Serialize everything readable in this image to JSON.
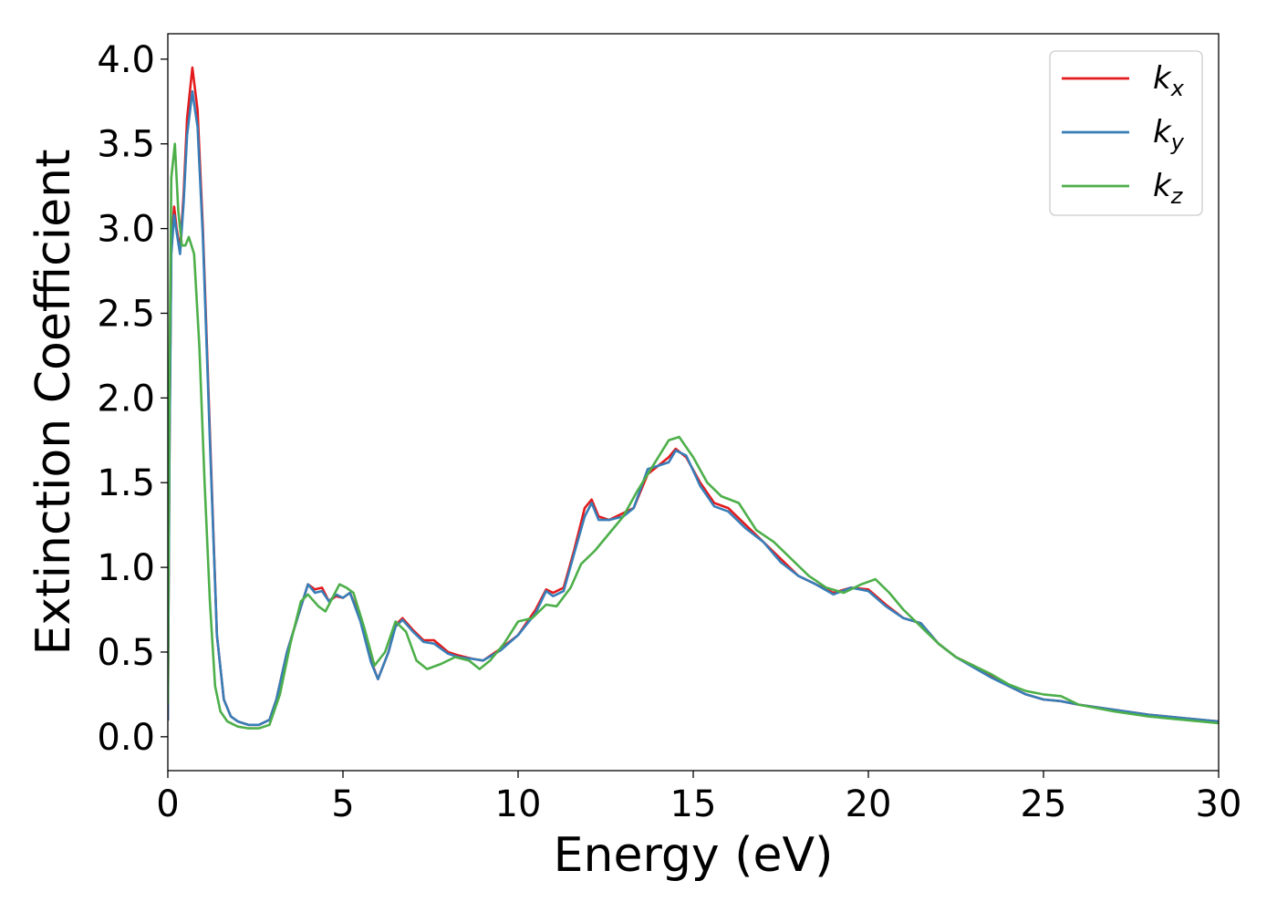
{
  "chart_data": {
    "type": "line",
    "title": "",
    "xlabel": "Energy (eV)",
    "ylabel": "Extinction Coefficient",
    "xlim": [
      0,
      30
    ],
    "ylim": [
      -0.2,
      4.15
    ],
    "xticks": [
      0,
      5,
      10,
      15,
      20,
      25,
      30
    ],
    "yticks": [
      0.0,
      0.5,
      1.0,
      1.5,
      2.0,
      2.5,
      3.0,
      3.5,
      4.0
    ],
    "xtick_labels": [
      "0",
      "5",
      "10",
      "15",
      "20",
      "25",
      "30"
    ],
    "ytick_labels": [
      "0.0",
      "0.5",
      "1.0",
      "1.5",
      "2.0",
      "2.5",
      "3.0",
      "3.5",
      "4.0"
    ],
    "grid": false,
    "legend_position": "top-right",
    "series": [
      {
        "name": "k_x",
        "label_base": "k",
        "label_sub": "x",
        "color": "#e41a1c",
        "x": [
          0,
          0.05,
          0.1,
          0.18,
          0.25,
          0.35,
          0.45,
          0.55,
          0.7,
          0.85,
          1.0,
          1.2,
          1.4,
          1.6,
          1.8,
          2.0,
          2.3,
          2.6,
          2.9,
          3.1,
          3.4,
          3.7,
          4.0,
          4.2,
          4.4,
          4.6,
          4.8,
          5.0,
          5.2,
          5.5,
          5.8,
          6.0,
          6.3,
          6.5,
          6.7,
          7.0,
          7.3,
          7.6,
          8.0,
          8.3,
          8.7,
          9.0,
          9.5,
          10.0,
          10.5,
          10.8,
          11.0,
          11.3,
          11.6,
          11.9,
          12.1,
          12.3,
          12.6,
          13.0,
          13.3,
          13.7,
          14.0,
          14.3,
          14.5,
          14.8,
          15.2,
          15.6,
          16.0,
          16.5,
          17.0,
          17.5,
          18.0,
          18.5,
          19.0,
          19.5,
          20.0,
          20.5,
          21.0,
          21.5,
          22.0,
          22.5,
          23.0,
          23.5,
          24.0,
          24.5,
          25.0,
          25.5,
          26.0,
          27.0,
          28.0,
          29.0,
          30.0
        ],
        "y": [
          0.1,
          1.8,
          2.9,
          3.13,
          3.0,
          2.88,
          3.2,
          3.65,
          3.95,
          3.7,
          3.0,
          1.8,
          0.6,
          0.22,
          0.12,
          0.09,
          0.07,
          0.07,
          0.1,
          0.22,
          0.5,
          0.7,
          0.9,
          0.87,
          0.88,
          0.8,
          0.83,
          0.82,
          0.85,
          0.7,
          0.45,
          0.34,
          0.5,
          0.66,
          0.7,
          0.63,
          0.57,
          0.57,
          0.5,
          0.48,
          0.46,
          0.45,
          0.52,
          0.6,
          0.75,
          0.87,
          0.85,
          0.88,
          1.1,
          1.35,
          1.4,
          1.3,
          1.28,
          1.32,
          1.35,
          1.55,
          1.6,
          1.65,
          1.7,
          1.65,
          1.5,
          1.38,
          1.35,
          1.25,
          1.15,
          1.05,
          0.95,
          0.9,
          0.85,
          0.88,
          0.87,
          0.78,
          0.7,
          0.67,
          0.55,
          0.47,
          0.42,
          0.36,
          0.3,
          0.25,
          0.22,
          0.21,
          0.19,
          0.16,
          0.13,
          0.11,
          0.09
        ]
      },
      {
        "name": "k_y",
        "label_base": "k",
        "label_sub": "y",
        "color": "#377eb8",
        "x": [
          0,
          0.05,
          0.1,
          0.18,
          0.25,
          0.35,
          0.45,
          0.55,
          0.7,
          0.85,
          1.0,
          1.2,
          1.4,
          1.6,
          1.8,
          2.0,
          2.3,
          2.6,
          2.9,
          3.1,
          3.4,
          3.7,
          4.0,
          4.2,
          4.4,
          4.6,
          4.8,
          5.0,
          5.2,
          5.5,
          5.8,
          6.0,
          6.3,
          6.5,
          6.7,
          7.0,
          7.3,
          7.6,
          8.0,
          8.3,
          8.7,
          9.0,
          9.5,
          10.0,
          10.5,
          10.8,
          11.0,
          11.3,
          11.6,
          11.9,
          12.1,
          12.3,
          12.6,
          13.0,
          13.3,
          13.7,
          14.0,
          14.3,
          14.5,
          14.8,
          15.2,
          15.6,
          16.0,
          16.5,
          17.0,
          17.5,
          18.0,
          18.5,
          19.0,
          19.5,
          20.0,
          20.5,
          21.0,
          21.5,
          22.0,
          22.5,
          23.0,
          23.5,
          24.0,
          24.5,
          25.0,
          25.5,
          26.0,
          27.0,
          28.0,
          29.0,
          30.0
        ],
        "y": [
          0.1,
          1.75,
          2.85,
          3.08,
          2.98,
          2.85,
          3.15,
          3.55,
          3.81,
          3.6,
          2.95,
          1.75,
          0.6,
          0.22,
          0.12,
          0.09,
          0.07,
          0.07,
          0.1,
          0.22,
          0.5,
          0.7,
          0.9,
          0.85,
          0.86,
          0.8,
          0.84,
          0.82,
          0.85,
          0.68,
          0.44,
          0.34,
          0.5,
          0.65,
          0.69,
          0.62,
          0.56,
          0.55,
          0.49,
          0.47,
          0.46,
          0.45,
          0.51,
          0.6,
          0.73,
          0.86,
          0.83,
          0.86,
          1.08,
          1.3,
          1.38,
          1.28,
          1.28,
          1.3,
          1.35,
          1.58,
          1.6,
          1.62,
          1.69,
          1.66,
          1.48,
          1.36,
          1.33,
          1.23,
          1.15,
          1.03,
          0.95,
          0.9,
          0.84,
          0.88,
          0.86,
          0.77,
          0.7,
          0.67,
          0.55,
          0.47,
          0.41,
          0.35,
          0.3,
          0.25,
          0.22,
          0.21,
          0.19,
          0.16,
          0.13,
          0.11,
          0.09
        ]
      },
      {
        "name": "k_z",
        "label_base": "k",
        "label_sub": "z",
        "color": "#4daf4a",
        "x": [
          0,
          0.05,
          0.1,
          0.2,
          0.3,
          0.4,
          0.5,
          0.6,
          0.75,
          0.9,
          1.05,
          1.2,
          1.35,
          1.5,
          1.7,
          2.0,
          2.3,
          2.6,
          2.9,
          3.2,
          3.5,
          3.8,
          4.0,
          4.3,
          4.5,
          4.7,
          4.9,
          5.1,
          5.3,
          5.6,
          5.9,
          6.2,
          6.5,
          6.8,
          7.1,
          7.4,
          7.8,
          8.2,
          8.6,
          8.9,
          9.2,
          9.6,
          10.0,
          10.4,
          10.8,
          11.1,
          11.5,
          11.8,
          12.2,
          12.6,
          13.0,
          13.4,
          13.7,
          14.0,
          14.3,
          14.6,
          15.0,
          15.4,
          15.8,
          16.3,
          16.8,
          17.3,
          17.8,
          18.3,
          18.8,
          19.3,
          19.8,
          20.2,
          20.6,
          21.0,
          21.5,
          22.0,
          22.5,
          23.0,
          23.5,
          24.0,
          24.5,
          25.0,
          25.5,
          26.0,
          27.0,
          28.0,
          29.0,
          30.0
        ],
        "y": [
          0.2,
          2.2,
          3.3,
          3.5,
          3.1,
          2.9,
          2.9,
          2.95,
          2.85,
          2.3,
          1.5,
          0.8,
          0.3,
          0.15,
          0.09,
          0.06,
          0.05,
          0.05,
          0.07,
          0.25,
          0.55,
          0.8,
          0.84,
          0.77,
          0.74,
          0.82,
          0.9,
          0.88,
          0.85,
          0.65,
          0.42,
          0.5,
          0.68,
          0.62,
          0.45,
          0.4,
          0.43,
          0.47,
          0.45,
          0.4,
          0.45,
          0.55,
          0.68,
          0.7,
          0.78,
          0.77,
          0.88,
          1.02,
          1.1,
          1.2,
          1.3,
          1.45,
          1.55,
          1.65,
          1.75,
          1.77,
          1.65,
          1.5,
          1.42,
          1.38,
          1.22,
          1.15,
          1.05,
          0.95,
          0.88,
          0.85,
          0.9,
          0.93,
          0.85,
          0.75,
          0.65,
          0.55,
          0.47,
          0.42,
          0.37,
          0.31,
          0.27,
          0.25,
          0.24,
          0.19,
          0.15,
          0.12,
          0.1,
          0.08
        ]
      }
    ]
  }
}
